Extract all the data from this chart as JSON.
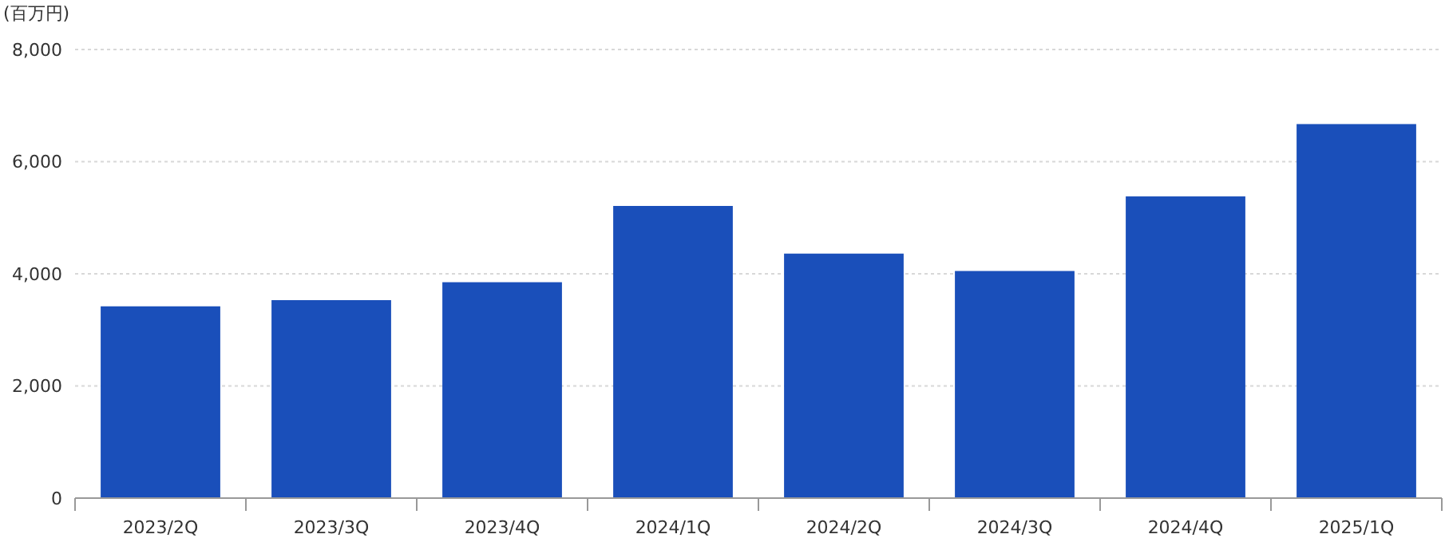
{
  "chart_data": {
    "type": "bar",
    "ylabel": "(百万円)",
    "categories": [
      "2023/2Q",
      "2023/3Q",
      "2023/4Q",
      "2024/1Q",
      "2024/2Q",
      "2024/3Q",
      "2024/4Q",
      "2025/1Q"
    ],
    "values": [
      3420,
      3530,
      3850,
      5210,
      4360,
      4050,
      5380,
      6670
    ],
    "color": "#1a4fba",
    "ylim": [
      0,
      8000
    ],
    "yticks": [
      0,
      {
        "value": 2000,
        "label": "2,000"
      },
      {
        "value": 4000,
        "label": "4,000"
      },
      {
        "value": 6000,
        "label": "6,000"
      },
      {
        "value": 8000,
        "label": "8,000"
      }
    ],
    "grid": "y"
  }
}
